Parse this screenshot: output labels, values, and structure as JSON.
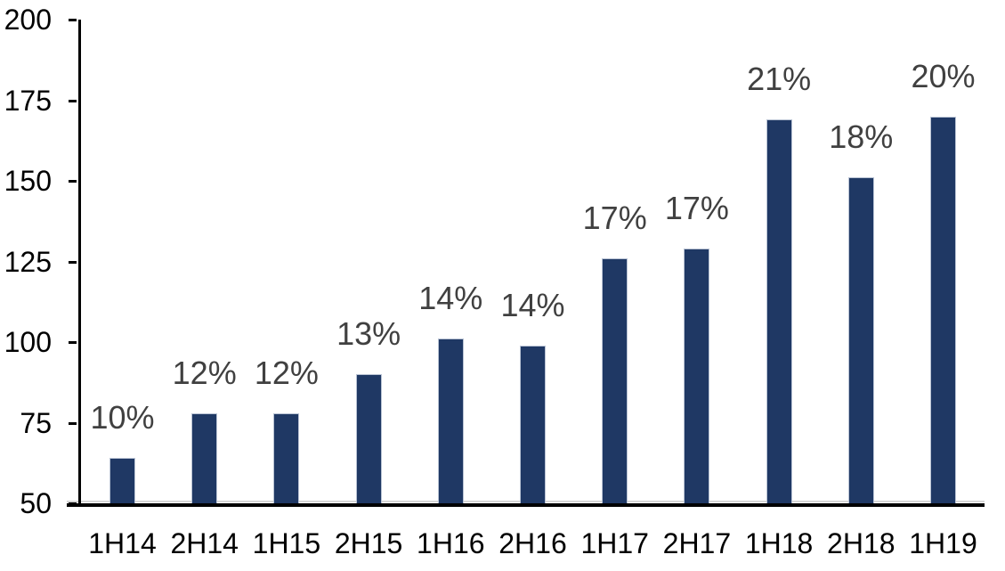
{
  "chart_data": {
    "type": "bar",
    "title": "",
    "xlabel": "",
    "ylabel": "",
    "categories": [
      "1H14",
      "2H14",
      "1H15",
      "2H15",
      "1H16",
      "2H16",
      "1H17",
      "2H17",
      "1H18",
      "2H18",
      "1H19"
    ],
    "values": [
      64,
      78,
      78,
      90,
      101,
      99,
      126,
      129,
      169,
      151,
      170
    ],
    "bar_labels": [
      "10%",
      "12%",
      "12%",
      "13%",
      "14%",
      "14%",
      "17%",
      "17%",
      "21%",
      "18%",
      "20%"
    ],
    "ylim": [
      50,
      200
    ],
    "yticks": [
      50,
      75,
      100,
      125,
      150,
      175,
      200
    ],
    "grid": false,
    "legend": "none",
    "colors": {
      "bar_fill": "#1f3864",
      "bar_border": "#b9c3d4",
      "axis": "#000000",
      "data_label": "#404040",
      "tick_label": "#000000",
      "background": "#ffffff",
      "near_baseline_gridline": "#d6d6d6"
    }
  }
}
